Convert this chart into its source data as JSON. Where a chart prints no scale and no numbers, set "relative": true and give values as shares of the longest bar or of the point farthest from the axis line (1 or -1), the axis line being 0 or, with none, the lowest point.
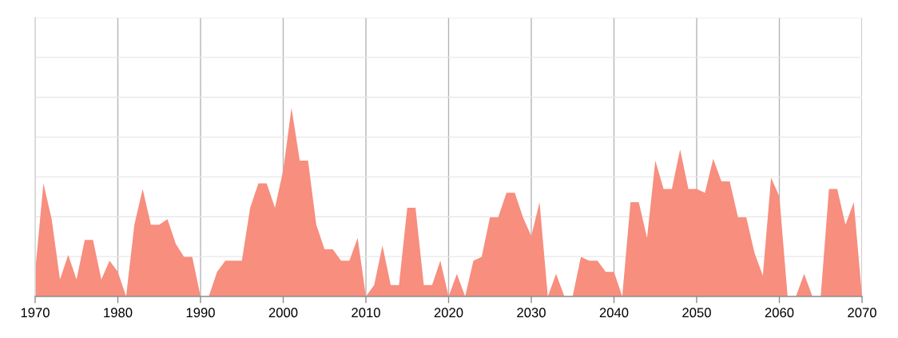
{
  "chart_data": {
    "type": "area",
    "relative": true,
    "color": "#f78e7e",
    "grid": true,
    "x": [
      1970,
      1971,
      1972,
      1973,
      1974,
      1975,
      1976,
      1977,
      1978,
      1979,
      1980,
      1981,
      1982,
      1983,
      1984,
      1985,
      1986,
      1987,
      1988,
      1989,
      1990,
      1991,
      1992,
      1993,
      1994,
      1995,
      1996,
      1997,
      1998,
      1999,
      2000,
      2001,
      2002,
      2003,
      2004,
      2005,
      2006,
      2007,
      2008,
      2009,
      2010,
      2011,
      2012,
      2013,
      2014,
      2015,
      2016,
      2017,
      2018,
      2019,
      2020,
      2021,
      2022,
      2023,
      2024,
      2025,
      2026,
      2027,
      2028,
      2029,
      2030,
      2031,
      2032,
      2033,
      2034,
      2035,
      2036,
      2037,
      2038,
      2039,
      2040,
      2041,
      2042,
      2043,
      2044,
      2045,
      2046,
      2047,
      2048,
      2049,
      2050,
      2051,
      2052,
      2053,
      2054,
      2055,
      2056,
      2057,
      2058,
      2059,
      2060,
      2061,
      2062,
      2063,
      2064,
      2065,
      2066,
      2067,
      2068,
      2069,
      2070
    ],
    "values": [
      0.13,
      0.6,
      0.41,
      0.09,
      0.22,
      0.09,
      0.3,
      0.3,
      0.09,
      0.19,
      0.13,
      0,
      0.38,
      0.57,
      0.38,
      0.38,
      0.41,
      0.28,
      0.21,
      0.21,
      0,
      0,
      0.13,
      0.19,
      0.19,
      0.19,
      0.47,
      0.6,
      0.6,
      0.47,
      0.67,
      1,
      0.72,
      0.72,
      0.38,
      0.25,
      0.25,
      0.19,
      0.19,
      0.31,
      0,
      0.06,
      0.27,
      0.06,
      0.06,
      0.47,
      0.47,
      0.06,
      0.06,
      0.19,
      0,
      0.12,
      0,
      0.19,
      0.21,
      0.42,
      0.42,
      0.55,
      0.55,
      0.42,
      0.32,
      0.5,
      0,
      0.12,
      0,
      0,
      0.21,
      0.19,
      0.19,
      0.13,
      0.13,
      0,
      0.5,
      0.5,
      0.31,
      0.72,
      0.57,
      0.57,
      0.78,
      0.57,
      0.57,
      0.55,
      0.73,
      0.61,
      0.61,
      0.42,
      0.42,
      0.23,
      0.11,
      0.63,
      0.53,
      0,
      0,
      0.12,
      0,
      0,
      0.57,
      0.57,
      0.38,
      0.5,
      0
    ],
    "xlim": [
      1970,
      2070
    ],
    "xticks": [
      1970,
      1980,
      1990,
      2000,
      2010,
      2020,
      2030,
      2040,
      2050,
      2060,
      2070
    ]
  }
}
